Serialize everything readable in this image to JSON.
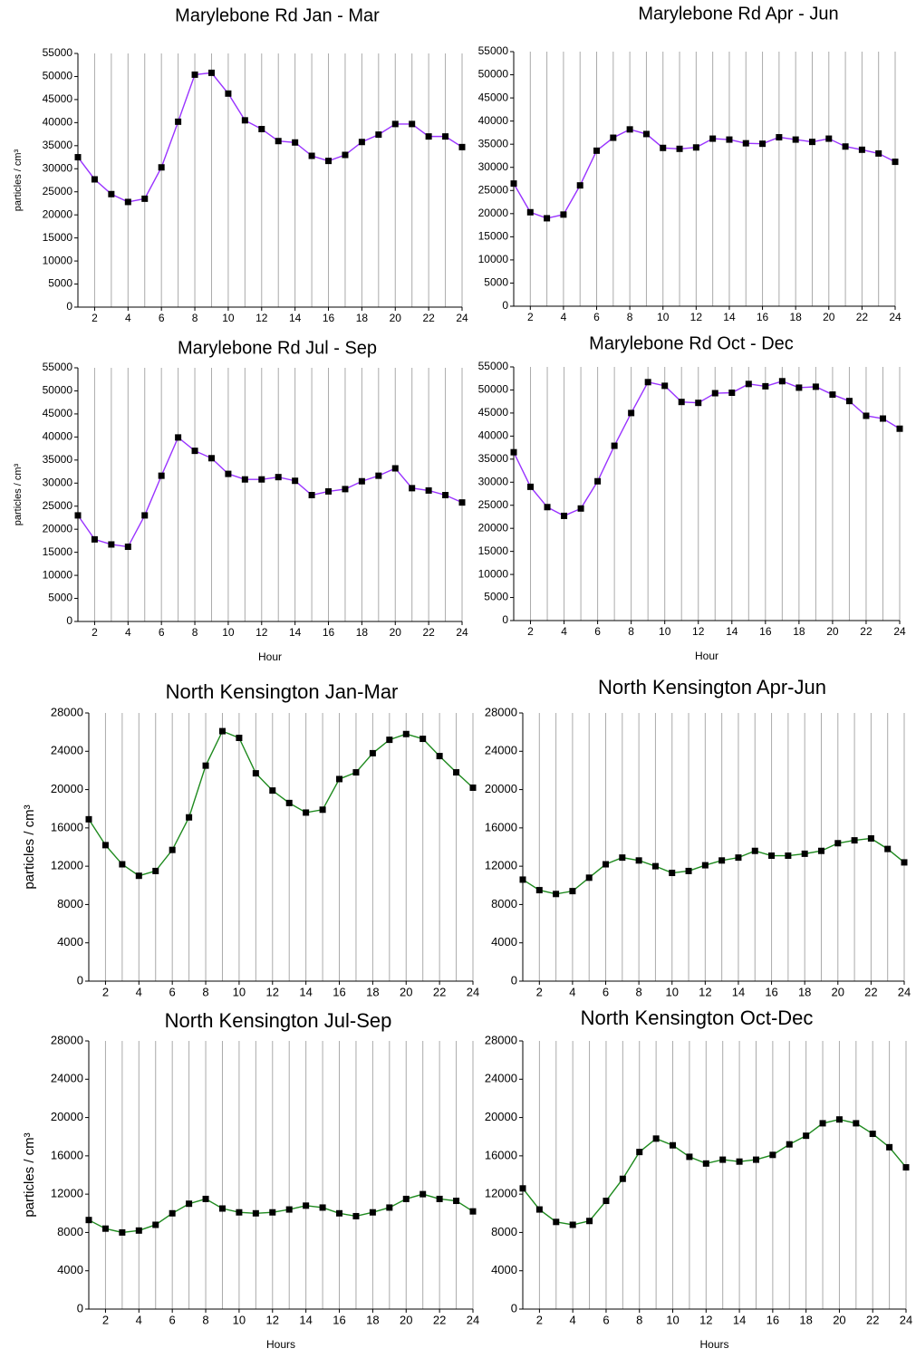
{
  "chart_data": [
    {
      "type": "line",
      "title": "Marylebone Rd Jan - Mar",
      "ylabel": "particles / cm³",
      "x": [
        1,
        2,
        3,
        4,
        5,
        6,
        7,
        8,
        9,
        10,
        11,
        12,
        13,
        14,
        15,
        16,
        17,
        18,
        19,
        20,
        21,
        22,
        23,
        24
      ],
      "values": [
        32500,
        27700,
        24500,
        22800,
        23500,
        30300,
        40200,
        50400,
        50800,
        46300,
        40500,
        38600,
        36000,
        35700,
        32800,
        31700,
        33000,
        35800,
        37400,
        39700,
        39700,
        37000,
        37000,
        34700
      ],
      "color": "#9933ff",
      "xlim": [
        1,
        24
      ],
      "xticks": [
        2,
        4,
        6,
        8,
        10,
        12,
        14,
        16,
        18,
        20,
        22,
        24
      ],
      "ylim": [
        0,
        55000
      ],
      "yticks": [
        0,
        5000,
        10000,
        15000,
        20000,
        25000,
        30000,
        35000,
        40000,
        45000,
        50000,
        55000
      ],
      "grid": true
    },
    {
      "type": "line",
      "title": "Marylebone Rd Apr - Jun",
      "x": [
        1,
        2,
        3,
        4,
        5,
        6,
        7,
        8,
        9,
        10,
        11,
        12,
        13,
        14,
        15,
        16,
        17,
        18,
        19,
        20,
        21,
        22,
        23,
        24
      ],
      "values": [
        26500,
        20300,
        19000,
        19800,
        26100,
        33600,
        36400,
        38200,
        37200,
        34200,
        34000,
        34300,
        36200,
        36000,
        35200,
        35100,
        36500,
        36000,
        35500,
        36200,
        34500,
        33800,
        33000,
        31200
      ],
      "color": "#9933ff",
      "xlim": [
        1,
        24
      ],
      "xticks": [
        2,
        4,
        6,
        8,
        10,
        12,
        14,
        16,
        18,
        20,
        22,
        24
      ],
      "ylim": [
        0,
        55000
      ],
      "yticks": [
        0,
        5000,
        10000,
        15000,
        20000,
        25000,
        30000,
        35000,
        40000,
        45000,
        50000,
        55000
      ],
      "grid": true
    },
    {
      "type": "line",
      "title": "Marylebone Rd Jul - Sep",
      "ylabel": "particles / cm³",
      "xlabel": "Hour",
      "x": [
        1,
        2,
        3,
        4,
        5,
        6,
        7,
        8,
        9,
        10,
        11,
        12,
        13,
        14,
        15,
        16,
        17,
        18,
        19,
        20,
        21,
        22,
        23,
        24
      ],
      "values": [
        23000,
        17800,
        16700,
        16200,
        23000,
        31600,
        39900,
        37000,
        35400,
        32000,
        30800,
        30800,
        31300,
        30500,
        27400,
        28200,
        28700,
        30400,
        31600,
        33200,
        28900,
        28400,
        27400,
        25800
      ],
      "color": "#9933ff",
      "xlim": [
        1,
        24
      ],
      "xticks": [
        2,
        4,
        6,
        8,
        10,
        12,
        14,
        16,
        18,
        20,
        22,
        24
      ],
      "ylim": [
        0,
        55000
      ],
      "yticks": [
        0,
        5000,
        10000,
        15000,
        20000,
        25000,
        30000,
        35000,
        40000,
        45000,
        50000,
        55000
      ],
      "grid": true
    },
    {
      "type": "line",
      "title": "Marylebone Rd Oct - Dec",
      "xlabel": "Hour",
      "x": [
        1,
        2,
        3,
        4,
        5,
        6,
        7,
        8,
        9,
        10,
        11,
        12,
        13,
        14,
        15,
        16,
        17,
        18,
        19,
        20,
        21,
        22,
        23,
        24
      ],
      "values": [
        36500,
        29000,
        24600,
        22700,
        24300,
        30200,
        37900,
        45000,
        51700,
        50900,
        47400,
        47200,
        49300,
        49400,
        51300,
        50800,
        51900,
        50500,
        50700,
        49000,
        47600,
        44400,
        43800,
        41600
      ],
      "color": "#9933ff",
      "xlim": [
        1,
        24
      ],
      "xticks": [
        2,
        4,
        6,
        8,
        10,
        12,
        14,
        16,
        18,
        20,
        22,
        24
      ],
      "ylim": [
        0,
        55000
      ],
      "yticks": [
        0,
        5000,
        10000,
        15000,
        20000,
        25000,
        30000,
        35000,
        40000,
        45000,
        50000,
        55000
      ],
      "grid": true
    },
    {
      "type": "line",
      "title": "North Kensington Jan-Mar",
      "ylabel": "particles / cm³",
      "x": [
        1,
        2,
        3,
        4,
        5,
        6,
        7,
        8,
        9,
        10,
        11,
        12,
        13,
        14,
        15,
        16,
        17,
        18,
        19,
        20,
        21,
        22,
        23,
        24
      ],
      "values": [
        16900,
        14200,
        12200,
        11000,
        11500,
        13700,
        17100,
        22500,
        26100,
        25400,
        21700,
        19900,
        18600,
        17600,
        17900,
        21100,
        21800,
        23800,
        25200,
        25800,
        25300,
        23500,
        21800,
        20200
      ],
      "color": "#1e8a1e",
      "xlim": [
        1,
        24
      ],
      "xticks": [
        2,
        4,
        6,
        8,
        10,
        12,
        14,
        16,
        18,
        20,
        22,
        24
      ],
      "ylim": [
        0,
        28000
      ],
      "yticks": [
        0,
        4000,
        8000,
        12000,
        16000,
        20000,
        24000,
        28000
      ],
      "grid": true
    },
    {
      "type": "line",
      "title": "North Kensington Apr-Jun",
      "x": [
        1,
        2,
        3,
        4,
        5,
        6,
        7,
        8,
        9,
        10,
        11,
        12,
        13,
        14,
        15,
        16,
        17,
        18,
        19,
        20,
        21,
        22,
        23,
        24
      ],
      "values": [
        10600,
        9500,
        9100,
        9400,
        10800,
        12200,
        12900,
        12600,
        12000,
        11300,
        11500,
        12100,
        12600,
        12900,
        13600,
        13100,
        13100,
        13300,
        13600,
        14400,
        14700,
        14900,
        13800,
        12400
      ],
      "color": "#1e8a1e",
      "xlim": [
        1,
        24
      ],
      "xticks": [
        2,
        4,
        6,
        8,
        10,
        12,
        14,
        16,
        18,
        20,
        22,
        24
      ],
      "ylim": [
        0,
        28000
      ],
      "yticks": [
        0,
        4000,
        8000,
        12000,
        16000,
        20000,
        24000,
        28000
      ],
      "grid": true
    },
    {
      "type": "line",
      "title": "North Kensington Jul-Sep",
      "ylabel": "particles / cm³",
      "xlabel": "Hours",
      "x": [
        1,
        2,
        3,
        4,
        5,
        6,
        7,
        8,
        9,
        10,
        11,
        12,
        13,
        14,
        15,
        16,
        17,
        18,
        19,
        20,
        21,
        22,
        23,
        24
      ],
      "values": [
        9300,
        8400,
        8000,
        8200,
        8800,
        10000,
        11000,
        11500,
        10500,
        10100,
        10000,
        10100,
        10400,
        10800,
        10600,
        10000,
        9700,
        10100,
        10600,
        11500,
        12000,
        11500,
        11300,
        10200
      ],
      "color": "#1e8a1e",
      "xlim": [
        1,
        24
      ],
      "xticks": [
        2,
        4,
        6,
        8,
        10,
        12,
        14,
        16,
        18,
        20,
        22,
        24
      ],
      "ylim": [
        0,
        28000
      ],
      "yticks": [
        0,
        4000,
        8000,
        12000,
        16000,
        20000,
        24000,
        28000
      ],
      "grid": true
    },
    {
      "type": "line",
      "title": "North Kensington Oct-Dec",
      "xlabel": "Hours",
      "x": [
        1,
        2,
        3,
        4,
        5,
        6,
        7,
        8,
        9,
        10,
        11,
        12,
        13,
        14,
        15,
        16,
        17,
        18,
        19,
        20,
        21,
        22,
        23,
        24
      ],
      "values": [
        12600,
        10400,
        9100,
        8800,
        9200,
        11300,
        13600,
        16400,
        17800,
        17100,
        15900,
        15200,
        15600,
        15400,
        15600,
        16100,
        17200,
        18100,
        19400,
        19800,
        19400,
        18300,
        16900,
        14800
      ],
      "color": "#1e8a1e",
      "xlim": [
        1,
        24
      ],
      "xticks": [
        2,
        4,
        6,
        8,
        10,
        12,
        14,
        16,
        18,
        20,
        22,
        24
      ],
      "ylim": [
        0,
        28000
      ],
      "yticks": [
        0,
        4000,
        8000,
        12000,
        16000,
        20000,
        24000,
        28000
      ],
      "grid": true
    }
  ]
}
